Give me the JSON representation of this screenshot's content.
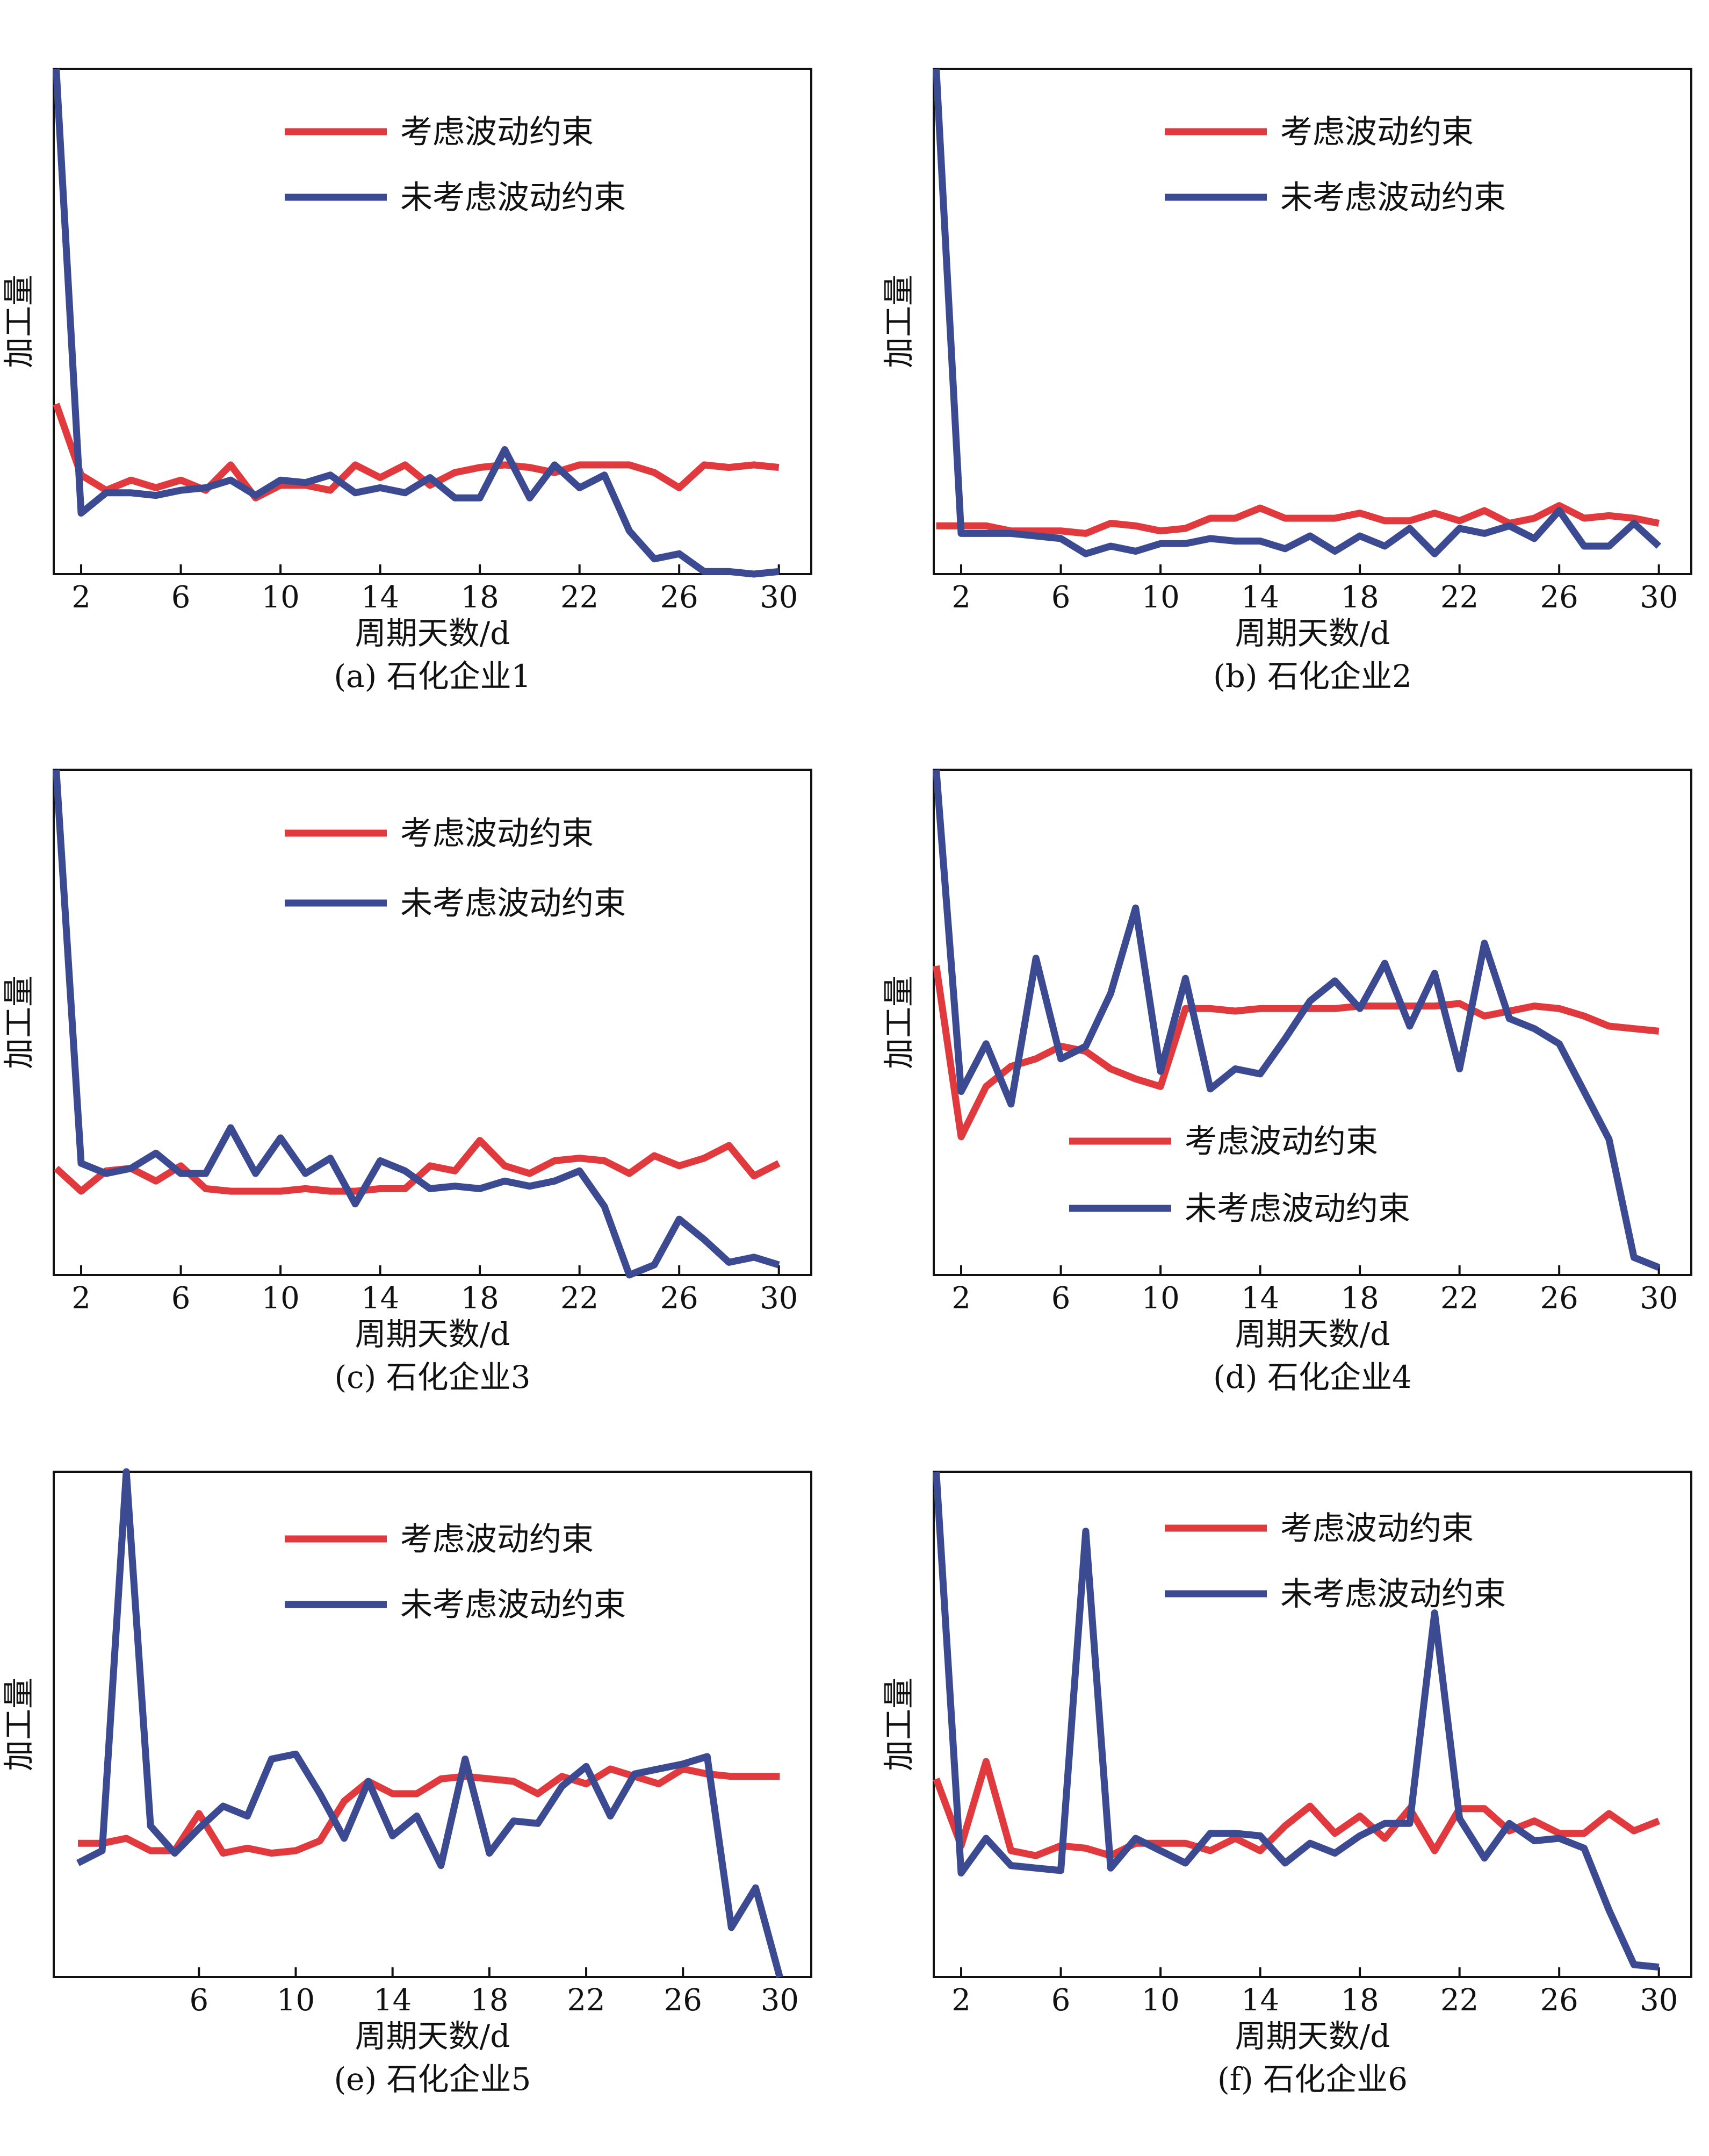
{
  "colors": {
    "constrained": "#E03A3E",
    "unconstrained": "#3B4A91",
    "axis": "#111111"
  },
  "chart_data": [
    {
      "id": "a",
      "type": "line",
      "caption": "(a) 石化企业1",
      "xlabel": "周期天数/d",
      "ylabel": "加工量",
      "xlim": [
        0.9,
        31.3
      ],
      "ylim": [
        0.9,
        20.8
      ],
      "xticks": [
        2,
        6,
        10,
        14,
        18,
        22,
        26,
        30
      ],
      "legend_position": "top-center",
      "series": [
        {
          "name": "考虑波动约束",
          "color": "#E03A3E",
          "x": [
            1,
            2,
            3,
            4,
            5,
            6,
            7,
            8,
            9,
            10,
            11,
            12,
            13,
            14,
            15,
            16,
            17,
            18,
            19,
            20,
            21,
            22,
            23,
            24,
            25,
            26,
            27,
            28,
            29,
            30
          ],
          "y": [
            7.6,
            4.8,
            4.2,
            4.6,
            4.3,
            4.6,
            4.2,
            5.2,
            3.9,
            4.4,
            4.4,
            4.2,
            5.2,
            4.7,
            5.2,
            4.4,
            4.9,
            5.1,
            5.2,
            5.1,
            4.9,
            5.2,
            5.2,
            5.2,
            4.9,
            4.3,
            5.2,
            5.1,
            5.2,
            5.1
          ]
        },
        {
          "name": "未考虑波动约束",
          "color": "#3B4A91",
          "x": [
            1,
            2,
            3,
            4,
            5,
            6,
            7,
            8,
            9,
            10,
            11,
            12,
            13,
            14,
            15,
            16,
            17,
            18,
            19,
            20,
            21,
            22,
            23,
            24,
            25,
            26,
            27,
            28,
            29,
            30
          ],
          "y": [
            20.8,
            3.3,
            4.1,
            4.1,
            4.0,
            4.2,
            4.3,
            4.6,
            4.0,
            4.6,
            4.5,
            4.8,
            4.1,
            4.3,
            4.1,
            4.7,
            3.9,
            3.9,
            5.8,
            3.9,
            5.2,
            4.3,
            4.8,
            2.6,
            1.5,
            1.7,
            1.0,
            1.0,
            0.9,
            1.0
          ]
        }
      ]
    },
    {
      "id": "b",
      "type": "line",
      "caption": "(b) 石化企业2",
      "xlabel": "周期天数/d",
      "ylabel": "加工量",
      "xlim": [
        0.9,
        31.3
      ],
      "ylim": [
        0.9,
        20.8
      ],
      "xticks": [
        2,
        6,
        10,
        14,
        18,
        22,
        26,
        30
      ],
      "legend_position": "top-center",
      "series": [
        {
          "name": "考虑波动约束",
          "color": "#E03A3E",
          "x": [
            1,
            2,
            3,
            4,
            5,
            6,
            7,
            8,
            9,
            10,
            11,
            12,
            13,
            14,
            15,
            16,
            17,
            18,
            19,
            20,
            21,
            22,
            23,
            24,
            25,
            26,
            27,
            28,
            29,
            30
          ],
          "y": [
            2.8,
            2.8,
            2.8,
            2.6,
            2.6,
            2.6,
            2.5,
            2.9,
            2.8,
            2.6,
            2.7,
            3.1,
            3.1,
            3.5,
            3.1,
            3.1,
            3.1,
            3.3,
            3.0,
            3.0,
            3.3,
            3.0,
            3.4,
            2.9,
            3.1,
            3.6,
            3.1,
            3.2,
            3.1,
            2.9
          ]
        },
        {
          "name": "未考虑波动约束",
          "color": "#3B4A91",
          "x": [
            1,
            2,
            3,
            4,
            5,
            6,
            7,
            8,
            9,
            10,
            11,
            12,
            13,
            14,
            15,
            16,
            17,
            18,
            19,
            20,
            21,
            22,
            23,
            24,
            25,
            26,
            27,
            28,
            29,
            30
          ],
          "y": [
            20.8,
            2.5,
            2.5,
            2.5,
            2.4,
            2.3,
            1.7,
            2.0,
            1.8,
            2.1,
            2.1,
            2.3,
            2.2,
            2.2,
            1.9,
            2.4,
            1.8,
            2.4,
            2.0,
            2.7,
            1.7,
            2.7,
            2.5,
            2.8,
            2.3,
            3.4,
            2.0,
            2.0,
            2.9,
            2.0
          ]
        }
      ]
    },
    {
      "id": "c",
      "type": "line",
      "caption": "(c) 石化企业3",
      "xlabel": "周期天数/d",
      "ylabel": "加工量",
      "xlim": [
        0.9,
        31.3
      ],
      "ylim": [
        0.9,
        20.8
      ],
      "xticks": [
        2,
        6,
        10,
        14,
        18,
        22,
        26,
        30
      ],
      "legend_position": "top-center",
      "series": [
        {
          "name": "考虑波动约束",
          "color": "#E03A3E",
          "x": [
            1,
            2,
            3,
            4,
            5,
            6,
            7,
            8,
            9,
            10,
            11,
            12,
            13,
            14,
            15,
            16,
            17,
            18,
            19,
            20,
            21,
            22,
            23,
            24,
            25,
            26,
            27,
            28,
            29,
            30
          ],
          "y": [
            5.1,
            4.2,
            5.0,
            5.1,
            4.6,
            5.2,
            4.3,
            4.2,
            4.2,
            4.2,
            4.3,
            4.2,
            4.2,
            4.3,
            4.3,
            5.2,
            5.0,
            6.2,
            5.2,
            4.9,
            5.4,
            5.5,
            5.4,
            4.9,
            5.6,
            5.2,
            5.5,
            6.0,
            4.8,
            5.3
          ]
        },
        {
          "name": "未考虑波动约束",
          "color": "#3B4A91",
          "x": [
            1,
            2,
            3,
            4,
            5,
            6,
            7,
            8,
            9,
            10,
            11,
            12,
            13,
            14,
            15,
            16,
            17,
            18,
            19,
            20,
            21,
            22,
            23,
            24,
            25,
            26,
            27,
            28,
            29,
            30
          ],
          "y": [
            20.8,
            5.3,
            4.9,
            5.1,
            5.7,
            4.9,
            4.9,
            6.7,
            4.9,
            6.3,
            4.9,
            5.5,
            3.7,
            5.4,
            5.0,
            4.3,
            4.4,
            4.3,
            4.6,
            4.4,
            4.6,
            5.0,
            3.6,
            0.9,
            1.3,
            3.1,
            2.3,
            1.4,
            1.6,
            1.3
          ]
        }
      ]
    },
    {
      "id": "d",
      "type": "line",
      "caption": "(d) 石化企业4",
      "xlabel": "周期天数/d",
      "ylabel": "加工量",
      "xlim": [
        0.9,
        31.3
      ],
      "ylim": [
        0.7,
        20.8
      ],
      "xticks": [
        2,
        6,
        10,
        14,
        18,
        22,
        26,
        30
      ],
      "legend_position": "lower-center",
      "series": [
        {
          "name": "考虑波动约束",
          "color": "#E03A3E",
          "x": [
            1,
            2,
            3,
            4,
            5,
            6,
            7,
            8,
            9,
            10,
            11,
            12,
            13,
            14,
            15,
            16,
            17,
            18,
            19,
            20,
            21,
            22,
            23,
            24,
            25,
            26,
            27,
            28,
            29,
            30
          ],
          "y": [
            13.0,
            6.2,
            8.2,
            9.0,
            9.3,
            9.8,
            9.6,
            8.9,
            8.5,
            8.2,
            11.3,
            11.3,
            11.2,
            11.3,
            11.3,
            11.3,
            11.3,
            11.4,
            11.4,
            11.4,
            11.4,
            11.5,
            11.0,
            11.2,
            11.4,
            11.3,
            11.0,
            10.6,
            10.5,
            10.4
          ]
        },
        {
          "name": "未考虑波动约束",
          "color": "#3B4A91",
          "x": [
            1,
            2,
            3,
            4,
            5,
            6,
            7,
            8,
            9,
            10,
            11,
            12,
            13,
            14,
            15,
            16,
            17,
            18,
            19,
            20,
            21,
            22,
            23,
            24,
            25,
            26,
            27,
            28,
            29,
            30
          ],
          "y": [
            20.8,
            8.0,
            9.9,
            7.5,
            13.3,
            9.3,
            9.8,
            11.9,
            15.3,
            8.8,
            12.5,
            8.1,
            8.9,
            8.7,
            10.1,
            11.6,
            12.4,
            11.3,
            13.1,
            10.6,
            12.7,
            8.9,
            13.9,
            10.9,
            10.5,
            9.9,
            8.0,
            6.1,
            1.4,
            1.0
          ]
        }
      ]
    },
    {
      "id": "e",
      "type": "line",
      "caption": "(e) 石化企业5",
      "xlabel": "周期天数/d",
      "ylabel": "加工量",
      "xlim": [
        0.0,
        31.3
      ],
      "ylim": [
        0.4,
        20.8
      ],
      "xticks": [
        6,
        10,
        14,
        18,
        22,
        26,
        30
      ],
      "legend_position": "top-center",
      "series": [
        {
          "name": "考虑波动约束",
          "color": "#E03A3E",
          "x": [
            1,
            2,
            3,
            4,
            5,
            6,
            7,
            8,
            9,
            10,
            11,
            12,
            13,
            14,
            15,
            16,
            17,
            18,
            19,
            20,
            21,
            22,
            23,
            24,
            25,
            26,
            27,
            28,
            29,
            30
          ],
          "y": [
            5.8,
            5.8,
            6.0,
            5.5,
            5.5,
            7.0,
            5.4,
            5.6,
            5.4,
            5.5,
            5.9,
            7.5,
            8.3,
            7.8,
            7.8,
            8.4,
            8.5,
            8.4,
            8.3,
            7.8,
            8.5,
            8.2,
            8.8,
            8.5,
            8.2,
            8.8,
            8.6,
            8.5,
            8.5,
            8.5
          ]
        },
        {
          "name": "未考虑波动约束",
          "color": "#3B4A91",
          "x": [
            1,
            2,
            3,
            4,
            5,
            6,
            7,
            8,
            9,
            10,
            11,
            12,
            13,
            14,
            15,
            16,
            17,
            18,
            19,
            20,
            21,
            22,
            23,
            24,
            25,
            26,
            27,
            28,
            29,
            30
          ],
          "y": [
            5.0,
            5.5,
            20.8,
            6.5,
            5.4,
            6.4,
            7.3,
            6.9,
            9.2,
            9.4,
            7.8,
            6.0,
            8.3,
            6.1,
            6.9,
            4.9,
            9.2,
            5.4,
            6.7,
            6.6,
            8.1,
            8.9,
            6.9,
            8.6,
            8.8,
            9.0,
            9.3,
            2.4,
            4.0,
            0.4
          ]
        }
      ]
    },
    {
      "id": "f",
      "type": "line",
      "caption": "(f) 石化企业6",
      "xlabel": "周期天数/d",
      "ylabel": "加工量",
      "xlim": [
        0.9,
        31.3
      ],
      "ylim": [
        0.4,
        20.8
      ],
      "xticks": [
        2,
        6,
        10,
        14,
        18,
        22,
        26,
        30
      ],
      "legend_position": "top-center",
      "series": [
        {
          "name": "考虑波动约束",
          "color": "#E03A3E",
          "x": [
            1,
            2,
            3,
            4,
            5,
            6,
            7,
            8,
            9,
            10,
            11,
            12,
            13,
            14,
            15,
            16,
            17,
            18,
            19,
            20,
            21,
            22,
            23,
            24,
            25,
            26,
            27,
            28,
            29,
            30
          ],
          "y": [
            8.4,
            5.7,
            9.1,
            5.5,
            5.3,
            5.7,
            5.6,
            5.3,
            5.8,
            5.8,
            5.8,
            5.5,
            6.0,
            5.5,
            6.5,
            7.3,
            6.2,
            6.9,
            6.0,
            7.2,
            5.5,
            7.2,
            7.2,
            6.3,
            6.7,
            6.2,
            6.2,
            7.0,
            6.3,
            6.7
          ]
        },
        {
          "name": "未考虑波动约束",
          "color": "#3B4A91",
          "x": [
            1,
            2,
            3,
            4,
            5,
            6,
            7,
            8,
            9,
            10,
            11,
            12,
            13,
            14,
            15,
            16,
            17,
            18,
            19,
            20,
            21,
            22,
            23,
            24,
            25,
            26,
            27,
            28,
            29,
            30
          ],
          "y": [
            20.8,
            4.6,
            6.0,
            4.9,
            4.8,
            4.7,
            18.4,
            4.8,
            6.0,
            5.5,
            5.0,
            6.2,
            6.2,
            6.1,
            5.0,
            5.8,
            5.4,
            6.1,
            6.6,
            6.6,
            15.1,
            6.8,
            5.2,
            6.6,
            5.9,
            6.0,
            5.6,
            3.1,
            0.9,
            0.8
          ]
        }
      ]
    }
  ]
}
